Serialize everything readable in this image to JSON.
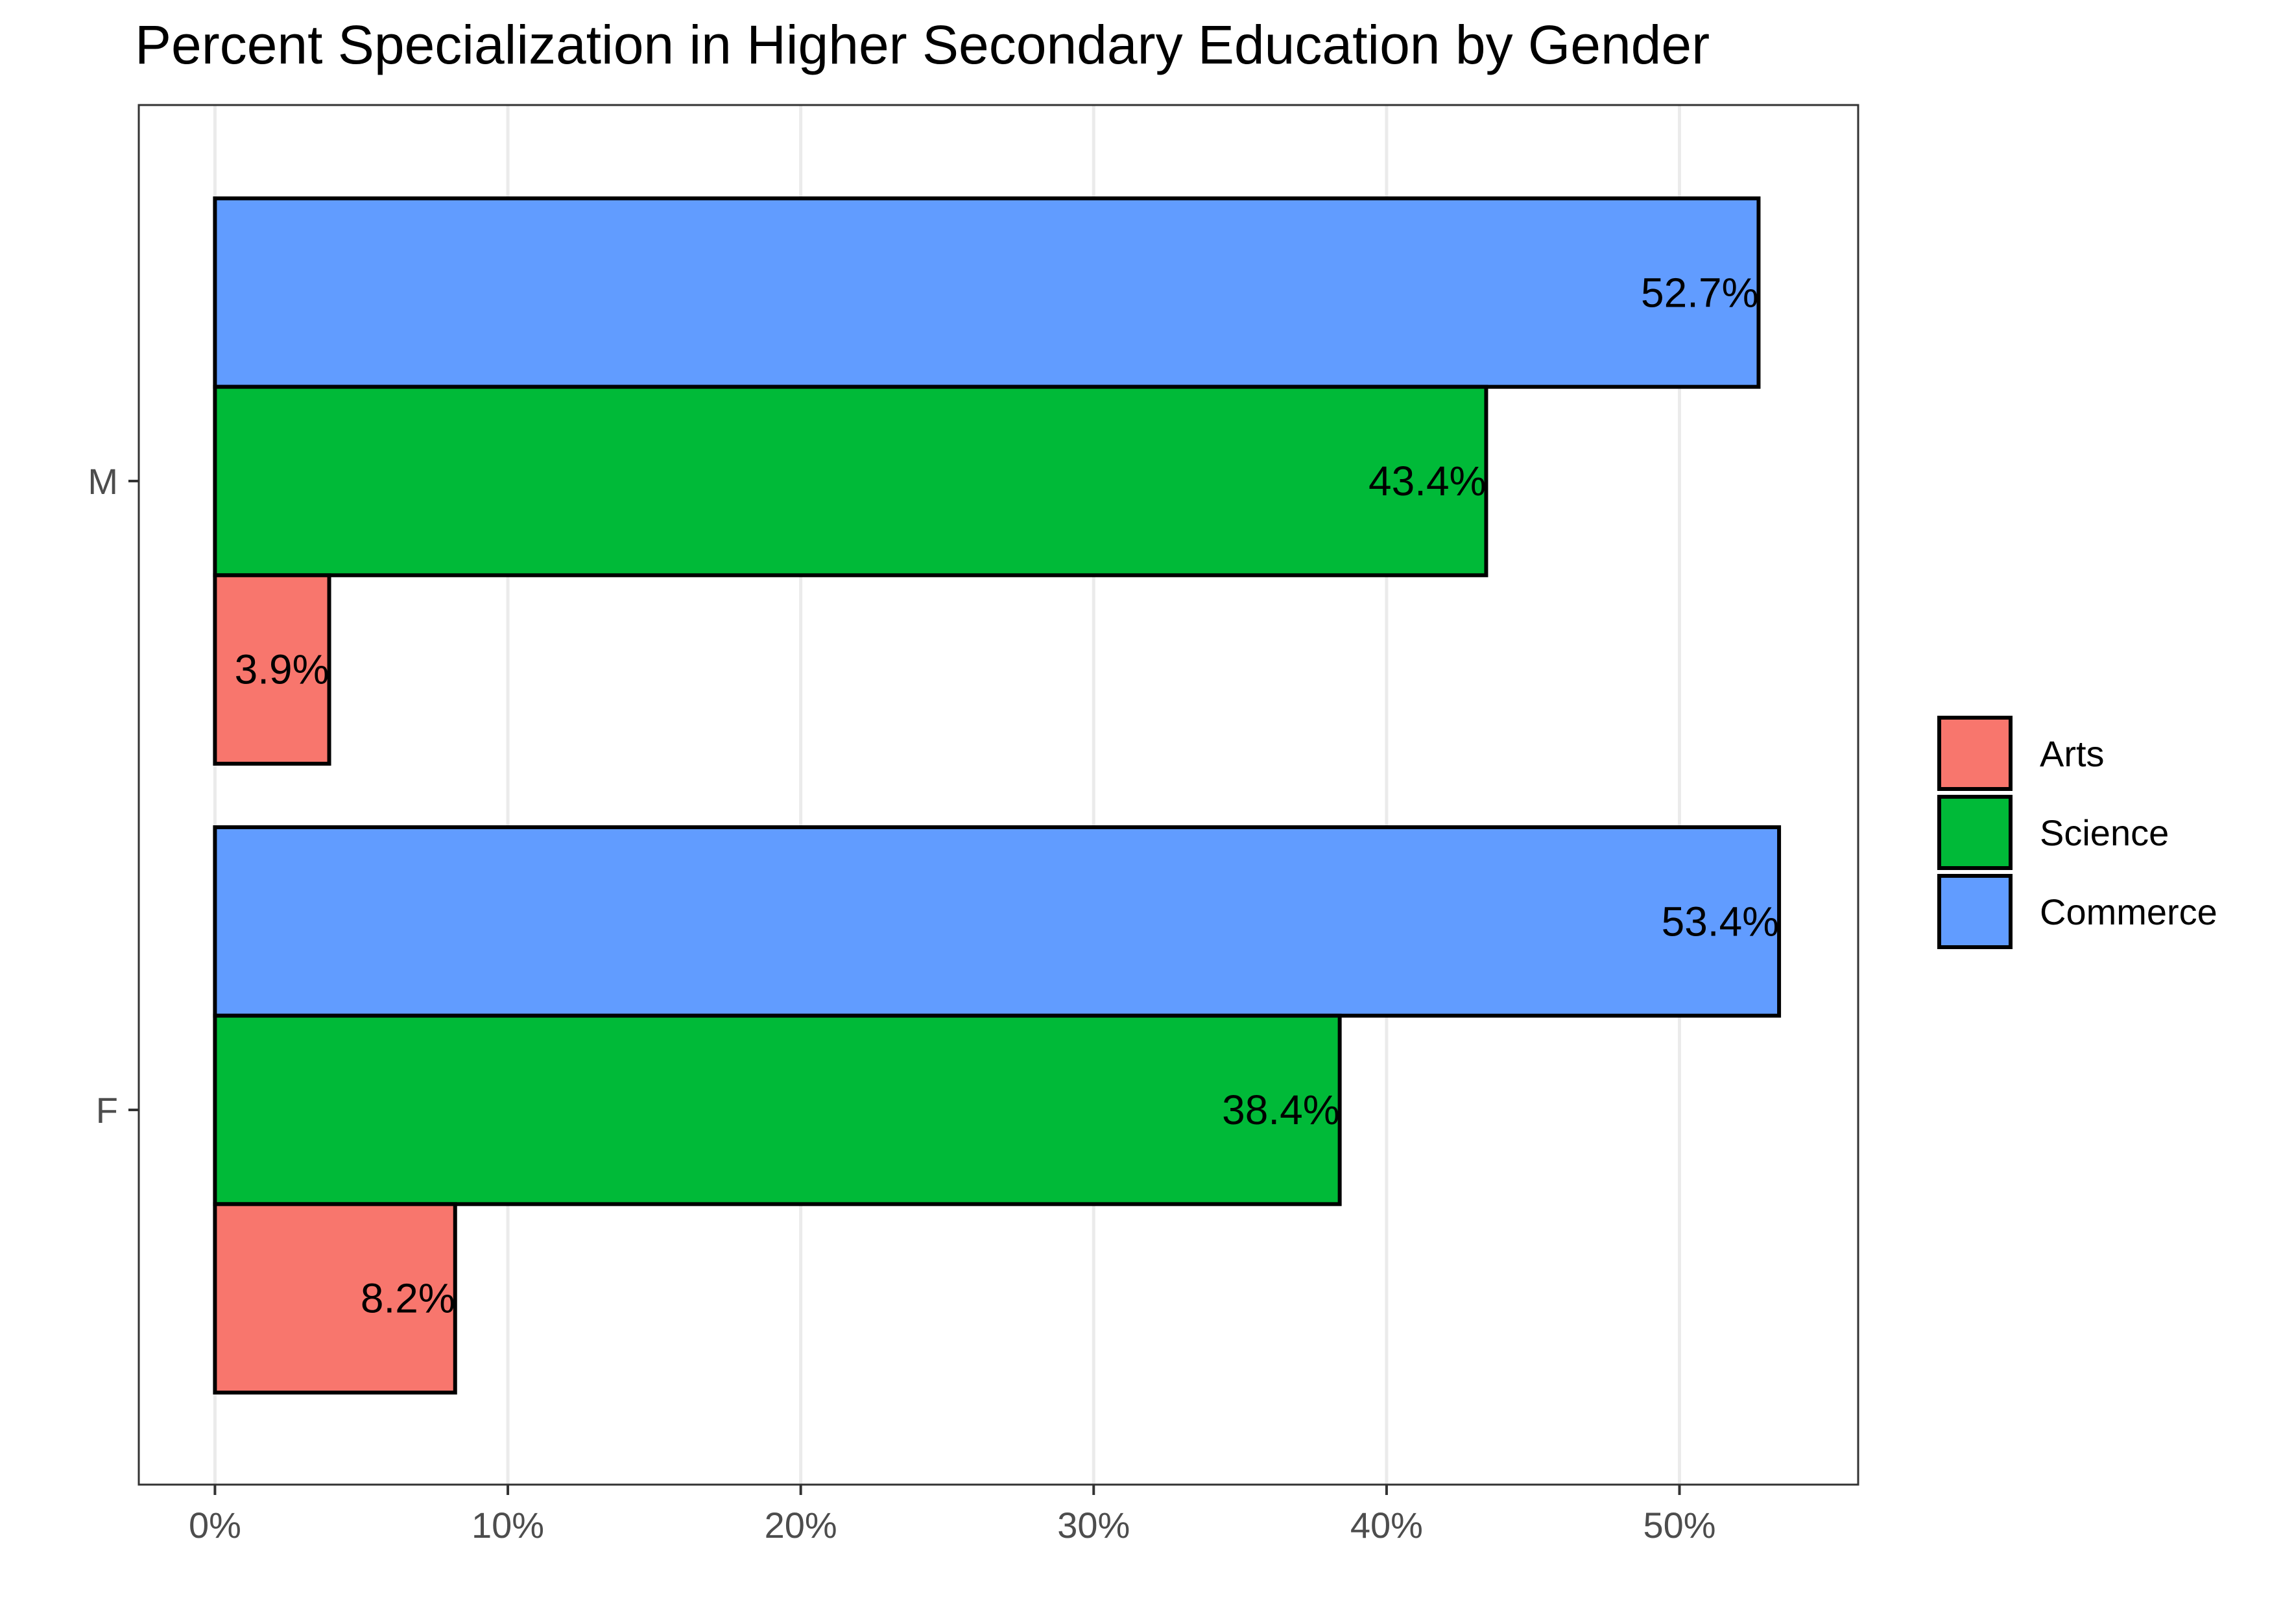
{
  "chart_data": {
    "type": "bar",
    "orientation": "horizontal",
    "title": "Percent Specialization in Higher Secondary Education by Gender",
    "xlabel": "",
    "ylabel": "",
    "categories": [
      "M",
      "F"
    ],
    "xlim": [
      -2.6,
      56.1
    ],
    "x_ticks": [
      {
        "value": 0,
        "label": "0%"
      },
      {
        "value": 10,
        "label": "10%"
      },
      {
        "value": 20,
        "label": "20%"
      },
      {
        "value": 30,
        "label": "30%"
      },
      {
        "value": 40,
        "label": "40%"
      },
      {
        "value": 50,
        "label": "50%"
      }
    ],
    "series": [
      {
        "name": "Arts",
        "color": "#F8766D",
        "values": [
          3.9,
          8.2
        ],
        "labels": [
          "3.9%",
          "8.2%"
        ]
      },
      {
        "name": "Science",
        "color": "#00BA38",
        "values": [
          43.4,
          38.4
        ],
        "labels": [
          "43.4%",
          "38.4%"
        ]
      },
      {
        "name": "Commerce",
        "color": "#619CFF",
        "values": [
          52.7,
          53.4
        ],
        "labels": [
          "52.7%",
          "53.4%"
        ]
      }
    ],
    "grid": "vertical-major",
    "legend": {
      "position": "right"
    }
  }
}
